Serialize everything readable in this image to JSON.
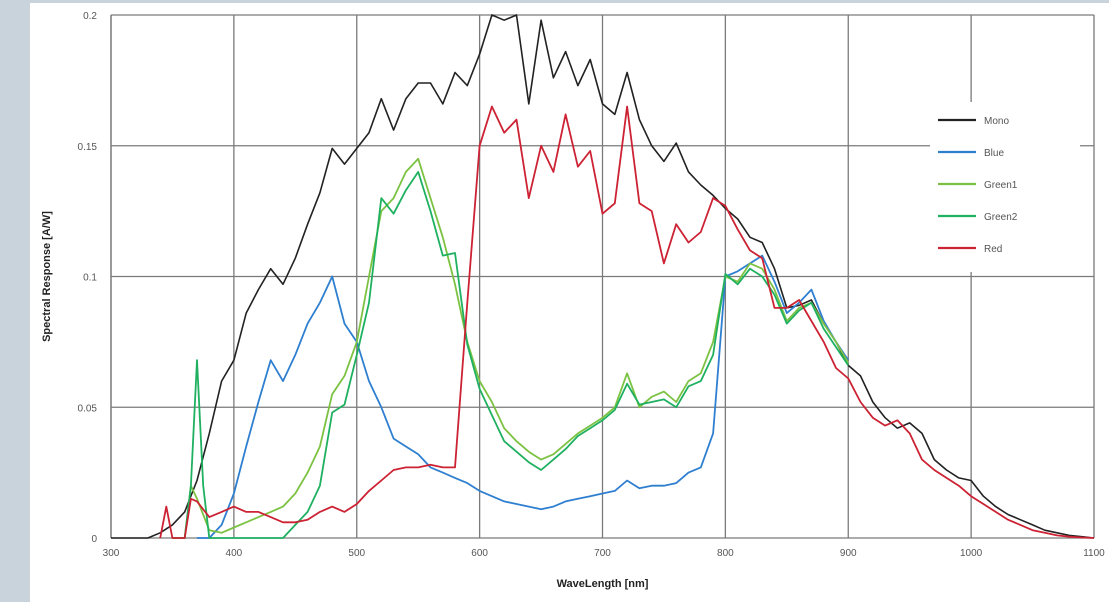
{
  "chart_data": {
    "type": "line",
    "xlabel": "WaveLength  [nm]",
    "ylabel": "Spectral Response [A/W]",
    "xlim": [
      300,
      1100
    ],
    "ylim": [
      0,
      0.2
    ],
    "x_ticks": [
      "300",
      "400",
      "500",
      "600",
      "700",
      "800",
      "900",
      "1000",
      "1100"
    ],
    "y_ticks": [
      "0",
      "0.05",
      "0.1",
      "0.15",
      "0.2"
    ],
    "grid": true,
    "legend_position": "right",
    "series": [
      {
        "name": "Mono",
        "color": "#222222",
        "x": [
          300,
          330,
          340,
          350,
          360,
          370,
          380,
          390,
          400,
          410,
          420,
          430,
          440,
          450,
          460,
          470,
          480,
          490,
          500,
          510,
          520,
          530,
          540,
          550,
          560,
          570,
          580,
          590,
          600,
          610,
          620,
          630,
          640,
          650,
          660,
          670,
          680,
          690,
          700,
          710,
          720,
          730,
          740,
          750,
          760,
          770,
          780,
          790,
          800,
          810,
          820,
          830,
          840,
          850,
          860,
          870,
          880,
          890,
          900,
          910,
          920,
          930,
          940,
          950,
          960,
          970,
          980,
          990,
          1000,
          1010,
          1020,
          1030,
          1040,
          1050,
          1060,
          1070,
          1080,
          1090,
          1100
        ],
        "y": [
          0,
          0,
          0.002,
          0.005,
          0.01,
          0.022,
          0.04,
          0.06,
          0.068,
          0.086,
          0.095,
          0.103,
          0.097,
          0.107,
          0.12,
          0.132,
          0.149,
          0.143,
          0.149,
          0.155,
          0.168,
          0.156,
          0.168,
          0.174,
          0.174,
          0.166,
          0.178,
          0.173,
          0.185,
          0.2,
          0.198,
          0.2,
          0.166,
          0.198,
          0.176,
          0.186,
          0.173,
          0.183,
          0.166,
          0.162,
          0.178,
          0.16,
          0.15,
          0.144,
          0.151,
          0.14,
          0.135,
          0.131,
          0.126,
          0.122,
          0.115,
          0.113,
          0.103,
          0.088,
          0.089,
          0.091,
          0.082,
          0.075,
          0.066,
          0.062,
          0.052,
          0.046,
          0.042,
          0.044,
          0.04,
          0.03,
          0.026,
          0.023,
          0.022,
          0.016,
          0.012,
          0.009,
          0.007,
          0.005,
          0.003,
          0.002,
          0.001,
          0.0005,
          0
        ]
      },
      {
        "name": "Blue",
        "color": "#2f7fd0",
        "x": [
          370,
          380,
          390,
          400,
          410,
          420,
          430,
          440,
          450,
          460,
          470,
          480,
          490,
          500,
          510,
          520,
          530,
          540,
          550,
          560,
          570,
          580,
          590,
          600,
          610,
          620,
          630,
          640,
          650,
          660,
          670,
          680,
          690,
          700,
          710,
          720,
          730,
          740,
          750,
          760,
          770,
          780,
          790,
          800,
          810,
          820,
          830,
          840,
          850,
          860,
          870,
          880,
          890,
          900
        ],
        "y": [
          0,
          0,
          0.005,
          0.017,
          0.035,
          0.052,
          0.068,
          0.06,
          0.07,
          0.082,
          0.09,
          0.1,
          0.082,
          0.075,
          0.06,
          0.05,
          0.038,
          0.035,
          0.032,
          0.027,
          0.025,
          0.023,
          0.021,
          0.018,
          0.016,
          0.014,
          0.013,
          0.012,
          0.011,
          0.012,
          0.014,
          0.015,
          0.016,
          0.017,
          0.018,
          0.022,
          0.019,
          0.02,
          0.02,
          0.021,
          0.025,
          0.027,
          0.04,
          0.1,
          0.102,
          0.105,
          0.108,
          0.098,
          0.086,
          0.09,
          0.095,
          0.083,
          0.075,
          0.068
        ]
      },
      {
        "name": "Green1",
        "color": "#7cc242",
        "x": [
          360,
          365,
          370,
          380,
          390,
          400,
          410,
          420,
          430,
          440,
          450,
          460,
          470,
          480,
          490,
          500,
          510,
          520,
          530,
          540,
          550,
          560,
          570,
          580,
          590,
          600,
          610,
          620,
          630,
          640,
          650,
          660,
          670,
          680,
          690,
          700,
          710,
          720,
          730,
          740,
          750,
          760,
          770,
          780,
          790,
          800,
          810,
          820,
          830,
          840,
          850,
          860,
          870,
          880,
          890,
          900
        ],
        "y": [
          0,
          0.02,
          0.015,
          0.003,
          0.002,
          0.004,
          0.006,
          0.008,
          0.01,
          0.012,
          0.017,
          0.025,
          0.035,
          0.055,
          0.062,
          0.075,
          0.1,
          0.125,
          0.13,
          0.14,
          0.145,
          0.13,
          0.115,
          0.097,
          0.075,
          0.06,
          0.052,
          0.042,
          0.037,
          0.033,
          0.03,
          0.032,
          0.036,
          0.04,
          0.043,
          0.046,
          0.05,
          0.063,
          0.05,
          0.054,
          0.056,
          0.052,
          0.06,
          0.063,
          0.075,
          0.1,
          0.098,
          0.105,
          0.103,
          0.095,
          0.083,
          0.088,
          0.09,
          0.082,
          0.075,
          0.067
        ]
      },
      {
        "name": "Green2",
        "color": "#1fb060",
        "x": [
          350,
          360,
          365,
          370,
          375,
          380,
          390,
          400,
          410,
          420,
          430,
          440,
          450,
          460,
          470,
          480,
          490,
          500,
          510,
          520,
          530,
          540,
          550,
          560,
          570,
          580,
          590,
          600,
          610,
          620,
          630,
          640,
          650,
          660,
          670,
          680,
          690,
          700,
          710,
          720,
          730,
          740,
          750,
          760,
          770,
          780,
          790,
          800,
          810,
          820,
          830,
          840,
          850,
          860,
          870,
          880,
          890,
          900
        ],
        "y": [
          0,
          0,
          0.02,
          0.068,
          0.02,
          0,
          0,
          0,
          0,
          0,
          0,
          0,
          0.005,
          0.01,
          0.02,
          0.048,
          0.051,
          0.07,
          0.09,
          0.13,
          0.124,
          0.133,
          0.14,
          0.125,
          0.108,
          0.109,
          0.074,
          0.057,
          0.047,
          0.037,
          0.033,
          0.029,
          0.026,
          0.03,
          0.034,
          0.039,
          0.042,
          0.045,
          0.049,
          0.059,
          0.051,
          0.052,
          0.053,
          0.05,
          0.058,
          0.06,
          0.07,
          0.101,
          0.097,
          0.103,
          0.1,
          0.093,
          0.082,
          0.087,
          0.09,
          0.08,
          0.073,
          0.066
        ]
      },
      {
        "name": "Red",
        "color": "#cc2233",
        "x": [
          340,
          345,
          350,
          355,
          360,
          365,
          370,
          380,
          390,
          400,
          410,
          420,
          430,
          440,
          450,
          460,
          470,
          480,
          490,
          500,
          510,
          520,
          530,
          540,
          550,
          560,
          570,
          580,
          590,
          600,
          610,
          620,
          630,
          640,
          650,
          660,
          670,
          680,
          690,
          700,
          710,
          720,
          730,
          740,
          750,
          760,
          770,
          780,
          790,
          800,
          810,
          820,
          830,
          840,
          850,
          860,
          870,
          880,
          890,
          900,
          910,
          920,
          930,
          940,
          950,
          960,
          970,
          980,
          990,
          1000,
          1010,
          1020,
          1030,
          1040,
          1050,
          1060,
          1070,
          1080,
          1090,
          1100
        ],
        "y": [
          0,
          0.012,
          0,
          0,
          0,
          0.015,
          0.014,
          0.008,
          0.01,
          0.012,
          0.01,
          0.01,
          0.008,
          0.006,
          0.006,
          0.007,
          0.01,
          0.012,
          0.01,
          0.013,
          0.018,
          0.022,
          0.026,
          0.027,
          0.027,
          0.028,
          0.027,
          0.027,
          0.09,
          0.15,
          0.165,
          0.155,
          0.16,
          0.13,
          0.15,
          0.14,
          0.162,
          0.142,
          0.148,
          0.124,
          0.128,
          0.165,
          0.128,
          0.125,
          0.105,
          0.12,
          0.113,
          0.117,
          0.13,
          0.127,
          0.118,
          0.11,
          0.107,
          0.088,
          0.088,
          0.091,
          0.083,
          0.075,
          0.065,
          0.061,
          0.052,
          0.046,
          0.043,
          0.045,
          0.04,
          0.03,
          0.026,
          0.023,
          0.02,
          0.016,
          0.013,
          0.01,
          0.007,
          0.005,
          0.003,
          0.002,
          0.001,
          0.0005,
          0.0002,
          0
        ]
      }
    ]
  }
}
